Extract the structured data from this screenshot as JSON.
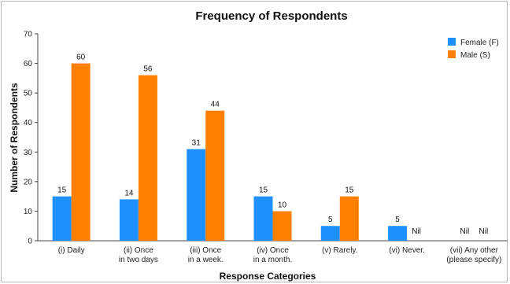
{
  "chart_data": {
    "type": "bar",
    "title": "Frequency of Respondents",
    "xlabel": "Response Categories",
    "ylabel": "Number of Respondents",
    "ylim": [
      0,
      70
    ],
    "yticks": [
      0,
      10,
      20,
      30,
      40,
      50,
      60,
      70
    ],
    "grid": false,
    "legend_position": "top-right",
    "categories": [
      [
        "(i) Daily"
      ],
      [
        "(ii) Once",
        "in two days"
      ],
      [
        "(iii) Once",
        "in a week."
      ],
      [
        "(iv) Once",
        "in a month."
      ],
      [
        "(v) Rarely."
      ],
      [
        "(vi) Never."
      ],
      [
        "(vii) Any other",
        "(please specify)"
      ]
    ],
    "series": [
      {
        "name": "Female (F)",
        "color": "#1e90ff",
        "values": [
          15,
          14,
          31,
          15,
          5,
          5,
          null
        ],
        "labels": [
          "15",
          "14",
          "31",
          "15",
          "5",
          "5",
          "Nil"
        ]
      },
      {
        "name": "Male (S)",
        "color": "#ff8000",
        "values": [
          60,
          56,
          44,
          10,
          15,
          null,
          null
        ],
        "labels": [
          "60",
          "56",
          "44",
          "10",
          "15",
          "Nil",
          "Nil"
        ]
      }
    ]
  }
}
